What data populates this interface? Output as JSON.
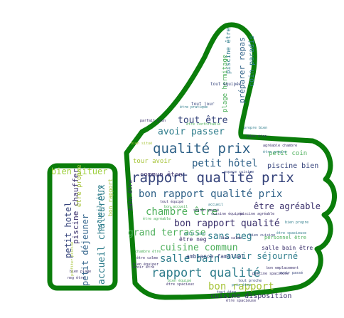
{
  "image": {
    "shape": "thumbs-up",
    "outline_color": "#0a7d0a",
    "background": "#ffffff"
  },
  "words": [
    {
      "text": "qualité prix",
      "color": "#2c5f86"
    },
    {
      "text": "rapport qualité prix",
      "color": "#34427a"
    },
    {
      "text": "bon rapport qualité prix",
      "color": "#2c5f86"
    },
    {
      "text": "rapport qualité",
      "color": "#2f7d8c"
    },
    {
      "text": "petit hôtel",
      "color": "#2c5f86"
    },
    {
      "text": "bon rapport qualité",
      "color": "#3a2f6b"
    },
    {
      "text": "chambre être",
      "color": "#4caf5a"
    },
    {
      "text": "cuisine commun",
      "color": "#4caf5a"
    },
    {
      "text": "salle bain",
      "color": "#2f7d8c"
    },
    {
      "text": "bon rapport",
      "color": "#a7c43a"
    },
    {
      "text": "sans neg",
      "color": "#2f7d8c"
    },
    {
      "text": "avoir passer",
      "color": "#2f7d8c"
    },
    {
      "text": "tout être",
      "color": "#34427a"
    },
    {
      "text": "grand terrasse",
      "color": "#4caf5a"
    },
    {
      "text": "être agréable",
      "color": "#3a2f6b"
    },
    {
      "text": "avoir séjourné",
      "color": "#2f7d8c"
    },
    {
      "text": "bien situer",
      "color": "#9ccf3a"
    },
    {
      "text": "accueil chaleureux",
      "color": "#2f7d8c"
    },
    {
      "text": "petit déjeuner",
      "color": "#3a6a90"
    },
    {
      "text": "petit hotel",
      "color": "#34427a"
    },
    {
      "text": "piscine chauffer",
      "color": "#3a2f6b"
    },
    {
      "text": "piscine bien",
      "color": "#34427a"
    },
    {
      "text": "cuisine disposition",
      "color": "#3a2f6b"
    },
    {
      "text": "piscine être",
      "color": "#2f7d8c"
    },
    {
      "text": "préparer repas",
      "color": "#2c5f86"
    },
    {
      "text": "coin paradis",
      "color": "#2f7d8c"
    },
    {
      "text": "plage hermitage",
      "color": "#4caf5a"
    },
    {
      "text": "commun être",
      "color": "#3a2f6b"
    },
    {
      "text": "petit coin",
      "color": "#4caf5a"
    },
    {
      "text": "tour avoir",
      "color": "#a7c43a"
    },
    {
      "text": "ambiance familial",
      "color": "#34427a"
    },
    {
      "text": "personnel être",
      "color": "#4caf5a"
    },
    {
      "text": "salle bain être",
      "color": "#3a2f6b"
    },
    {
      "text": "accueil être",
      "color": "#2f7d8c"
    },
    {
      "text": "tout équipée",
      "color": "#34427a"
    },
    {
      "text": "tout jour",
      "color": "#34427a"
    },
    {
      "text": "être pratique",
      "color": "#2f7d8c"
    },
    {
      "text": "être confortable",
      "color": "#4caf5a"
    },
    {
      "text": "parfait bien",
      "color": "#3a2f6b"
    },
    {
      "text": "agréable chambre",
      "color": "#3a2f6b"
    },
    {
      "text": "espace cuisine",
      "color": "#34427a"
    },
    {
      "text": "bain être",
      "color": "#3a2f6b"
    },
    {
      "text": "être neg",
      "color": "#3a2f6b"
    },
    {
      "text": "piscine agréable",
      "color": "#3a2f6b"
    },
    {
      "text": "bien équiper",
      "color": "#3a2f6b"
    },
    {
      "text": "avoir être",
      "color": "#3a2f6b"
    },
    {
      "text": "être spacieuse",
      "color": "#3a2f6b"
    },
    {
      "text": "être propre",
      "color": "#a7c43a"
    },
    {
      "text": "bon rapport",
      "color": "#a7c43a"
    },
    {
      "text": "bien équipé",
      "color": "#4caf5a"
    },
    {
      "text": "bien plage",
      "color": "#3a2f6b"
    },
    {
      "text": "neg être",
      "color": "#3a2f6b"
    },
    {
      "text": "profiter piscine",
      "color": "#a7c43a"
    },
    {
      "text": "petit bien",
      "color": "#2f7d8c"
    },
    {
      "text": "bien cuisine",
      "color": "#34427a"
    },
    {
      "text": "accueil",
      "color": "#2f7d8c"
    },
    {
      "text": "être spacieux",
      "color": "#3a2f6b"
    },
    {
      "text": "cuisine équipée",
      "color": "#3a2f6b"
    },
    {
      "text": "tout être",
      "color": "#34427a"
    },
    {
      "text": "bien être",
      "color": "#3a2f6b"
    },
    {
      "text": "chambre être",
      "color": "#4caf5a"
    },
    {
      "text": "être calme",
      "color": "#3a2f6b"
    },
    {
      "text": "bien situé",
      "color": "#a7c43a"
    },
    {
      "text": "propre bien",
      "color": "#2f7d8c"
    },
    {
      "text": "bien propre",
      "color": "#2f7d8c"
    },
    {
      "text": "être spacieuse",
      "color": "#2f7d8c"
    },
    {
      "text": "avoir passé",
      "color": "#34427a"
    },
    {
      "text": "bon accueil",
      "color": "#4caf5a"
    },
    {
      "text": "séjour passé",
      "color": "#3a2f6b"
    },
    {
      "text": "lieu calme",
      "color": "#3a2f6b"
    },
    {
      "text": "être propre",
      "color": "#2f7d8c"
    },
    {
      "text": "tout proche",
      "color": "#34427a"
    },
    {
      "text": "bon emplacement",
      "color": "#3a2f6b"
    },
    {
      "text": "tout équipé",
      "color": "#3a2f6b"
    },
    {
      "text": "être agréable",
      "color": "#4caf5a"
    },
    {
      "text": "piscine spacieuse",
      "color": "#3a2f6b"
    },
    {
      "text": "prix être",
      "color": "#2f7d8c"
    }
  ]
}
